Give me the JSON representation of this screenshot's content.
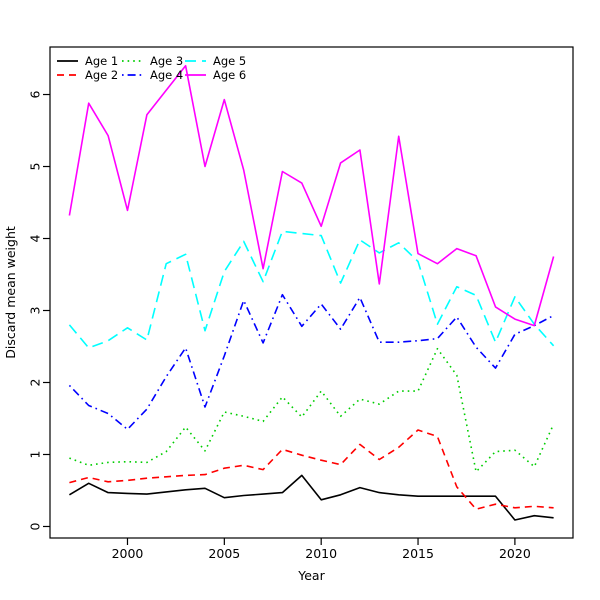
{
  "figure": {
    "background": "#FFFFFF",
    "box_color": "#000000"
  },
  "chart_data": {
    "type": "line",
    "title": "",
    "xlabel": "Year",
    "ylabel": "Discard mean weight",
    "x": [
      1997,
      1998,
      1999,
      2000,
      2001,
      2002,
      2003,
      2004,
      2005,
      2006,
      2007,
      2008,
      2009,
      2010,
      2011,
      2012,
      2013,
      2014,
      2015,
      2016,
      2017,
      2018,
      2019,
      2020,
      2021,
      2022
    ],
    "x_ticks": [
      2000,
      2005,
      2010,
      2015,
      2020
    ],
    "y_ticks": [
      0,
      1,
      2,
      3,
      4,
      5,
      6
    ],
    "x_range": [
      1996,
      2023
    ],
    "y_range": [
      -0.16,
      6.66
    ],
    "grid": false,
    "legend_position": "top-left",
    "legend_columns": 3,
    "series": [
      {
        "name": "Age 1",
        "color": "#000000",
        "linetype": "solid",
        "values": [
          0.44,
          0.6,
          0.47,
          0.46,
          0.45,
          0.48,
          0.51,
          0.53,
          0.4,
          0.43,
          0.45,
          0.47,
          0.71,
          0.37,
          0.44,
          0.54,
          0.47,
          0.44,
          0.42,
          0.42,
          0.42,
          0.42,
          0.42,
          0.09,
          0.15,
          0.12
        ]
      },
      {
        "name": "Age 2",
        "color": "#FF0000",
        "linetype": "dashed",
        "values": [
          0.61,
          0.68,
          0.62,
          0.64,
          0.67,
          0.69,
          0.71,
          0.72,
          0.81,
          0.85,
          0.79,
          1.07,
          0.99,
          0.92,
          0.86,
          1.14,
          0.93,
          1.1,
          1.34,
          1.25,
          0.55,
          0.24,
          0.31,
          0.26,
          0.28,
          0.26
        ]
      },
      {
        "name": "Age 3",
        "color": "#00CD00",
        "linetype": "dotted",
        "values": [
          0.95,
          0.85,
          0.89,
          0.9,
          0.89,
          1.04,
          1.38,
          1.05,
          1.59,
          1.53,
          1.46,
          1.8,
          1.52,
          1.88,
          1.53,
          1.77,
          1.7,
          1.88,
          1.88,
          2.47,
          2.1,
          0.76,
          1.04,
          1.06,
          0.83,
          1.42
        ]
      },
      {
        "name": "Age 4",
        "color": "#0000FF",
        "linetype": "dotdash",
        "values": [
          1.96,
          1.68,
          1.57,
          1.35,
          1.63,
          2.08,
          2.48,
          1.66,
          2.37,
          3.14,
          2.55,
          3.22,
          2.78,
          3.09,
          2.74,
          3.18,
          2.56,
          2.56,
          2.58,
          2.61,
          2.91,
          2.49,
          2.2,
          2.67,
          2.79,
          2.93
        ]
      },
      {
        "name": "Age 5",
        "color": "#00FFFF",
        "linetype": "longdash",
        "values": [
          2.8,
          2.48,
          2.58,
          2.76,
          2.59,
          3.65,
          3.78,
          2.72,
          3.54,
          3.96,
          3.4,
          4.1,
          4.07,
          4.04,
          3.38,
          3.98,
          3.8,
          3.94,
          3.68,
          2.81,
          3.33,
          3.21,
          2.56,
          3.19,
          2.81,
          2.51
        ]
      },
      {
        "name": "Age 6",
        "color": "#FF00FF",
        "linetype": "solid",
        "values": [
          4.32,
          5.88,
          5.43,
          4.39,
          5.72,
          6.06,
          6.4,
          5.0,
          5.93,
          4.95,
          3.58,
          4.93,
          4.77,
          4.17,
          5.05,
          5.23,
          3.37,
          5.42,
          3.79,
          3.65,
          3.86,
          3.76,
          3.05,
          2.88,
          2.79,
          3.75
        ]
      }
    ]
  }
}
